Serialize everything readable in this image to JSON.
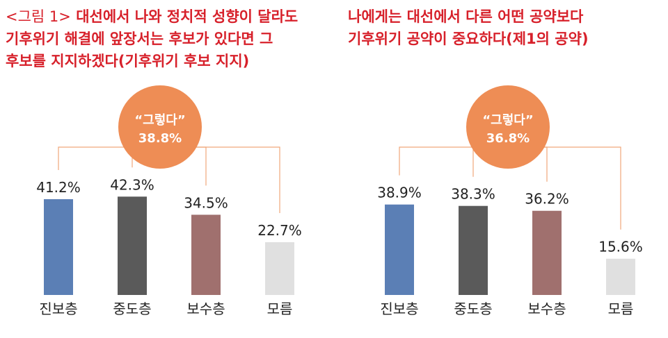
{
  "titles": {
    "left_prefix": "<그림 1>",
    "left_main": "대선에서 나와 정치적 성향이 달라도\n기후위기 해결에 앞장서는 후보가 있다면 그\n후보를 지지하겠다(기후위기 후보 지지)",
    "right": "나에게는 대선에서 다른 어떤 공약보다\n기후위기 공약이 중요하다(제1의 공약)"
  },
  "colors": {
    "title": "#d7202a",
    "bubble": "#ee8d55",
    "connector": "#f0a77a",
    "bars": [
      "#5b7fb5",
      "#5a5a5a",
      "#a0706e",
      "#e0e0e0"
    ]
  },
  "chart_data": [
    {
      "type": "bar",
      "categories": [
        "진보층",
        "중도층",
        "보수층",
        "모름"
      ],
      "values": [
        41.2,
        42.3,
        34.5,
        22.7
      ],
      "value_labels": [
        "41.2%",
        "42.3%",
        "34.5%",
        "22.7%"
      ],
      "overall_label": "“그렇다”",
      "overall_value": "38.8%",
      "ylim": [
        0,
        50
      ]
    },
    {
      "type": "bar",
      "categories": [
        "진보층",
        "중도층",
        "보수층",
        "모름"
      ],
      "values": [
        38.9,
        38.3,
        36.2,
        15.6
      ],
      "value_labels": [
        "38.9%",
        "38.3%",
        "36.2%",
        "15.6%"
      ],
      "overall_label": "“그렇다”",
      "overall_value": "36.8%",
      "ylim": [
        0,
        50
      ]
    }
  ]
}
